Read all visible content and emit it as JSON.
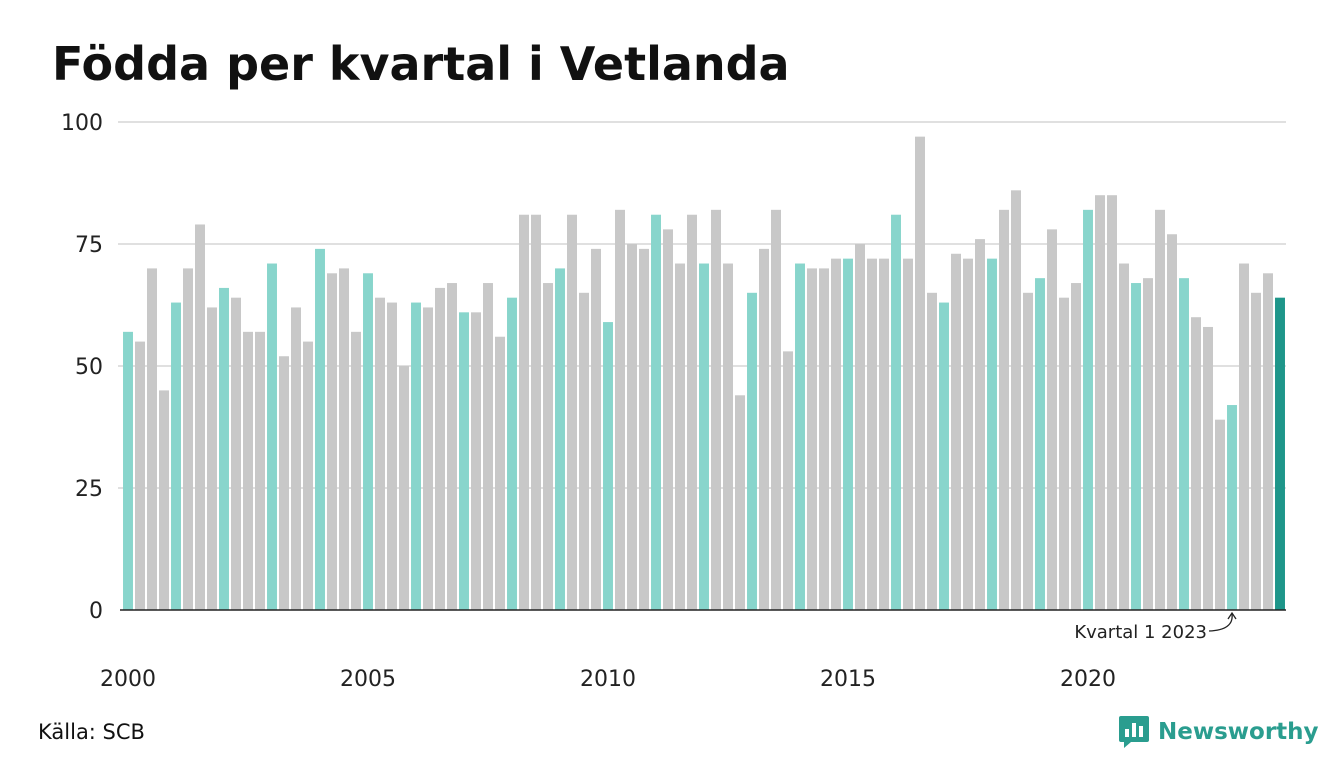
{
  "title": "Födda per kvartal i Vetlanda",
  "source": "Källa: SCB",
  "brand": "Newsworthy",
  "colors": {
    "q1": "#88d5cc",
    "other": "#c8c8c8",
    "latest": "#1e968a",
    "brand": "#2a9d8f"
  },
  "chart_data": {
    "type": "bar",
    "ylim": [
      0,
      100
    ],
    "yticks": [
      0,
      25,
      50,
      75,
      100
    ],
    "xtick_labels": [
      "2000",
      "2005",
      "2010",
      "2015",
      "2020"
    ],
    "grid": true,
    "annotation": "Kvartal 1 2023",
    "values": [
      57,
      55,
      70,
      45,
      63,
      70,
      79,
      62,
      66,
      64,
      57,
      57,
      71,
      52,
      62,
      55,
      74,
      69,
      70,
      57,
      69,
      64,
      63,
      50,
      63,
      62,
      66,
      67,
      61,
      61,
      67,
      56,
      64,
      81,
      81,
      67,
      70,
      81,
      65,
      74,
      59,
      82,
      75,
      74,
      81,
      78,
      71,
      81,
      71,
      82,
      71,
      44,
      65,
      74,
      82,
      53,
      71,
      70,
      70,
      72,
      72,
      75,
      72,
      72,
      81,
      72,
      97,
      65,
      63,
      73,
      72,
      76,
      72,
      82,
      86,
      65,
      68,
      78,
      64,
      67,
      82,
      85,
      85,
      71,
      67,
      68,
      82,
      77,
      68,
      60,
      58,
      39,
      42,
      71,
      65,
      69,
      64
    ]
  }
}
